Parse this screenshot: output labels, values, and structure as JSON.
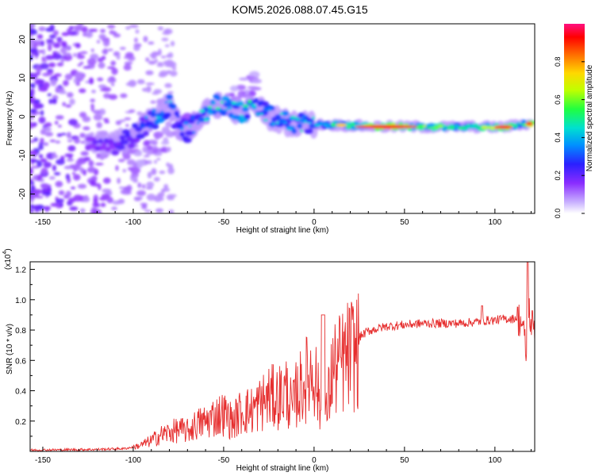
{
  "title": "KOM5.2026.088.07.45.G15",
  "chart_data": [
    {
      "type": "heatmap",
      "xlabel": "Height of straight line (km)",
      "ylabel": "Frequency (Hz)",
      "xlim": [
        -157,
        122
      ],
      "ylim": [
        -25,
        24
      ],
      "xticks": [
        -150,
        -100,
        -50,
        0,
        50,
        100
      ],
      "xtick_labels": [
        "-150",
        "-100",
        "-50",
        "0",
        "50",
        "100"
      ],
      "yticks": [
        20,
        10,
        0,
        -10,
        -20
      ],
      "ytick_labels": [
        "20",
        "10",
        "0",
        "-10",
        "-20"
      ],
      "colorbar": {
        "label": "Normalized spectral amplitude",
        "range": [
          0,
          1
        ],
        "ticks": [
          0.0,
          0.2,
          0.4,
          0.6,
          0.8
        ],
        "tick_labels": [
          "0.0",
          "0.2",
          "0.4",
          "0.6",
          "0.8"
        ]
      },
      "colors": [
        "#ffffff",
        "#b39aff",
        "#7a1cff",
        "#2a2aff",
        "#00b4ff",
        "#00e0b0",
        "#40ff40",
        "#d8ff00",
        "#ffd000",
        "#ff6a00",
        "#ff0000",
        "#ff0080"
      ],
      "ridge": {
        "description_points": [
          {
            "x": -120,
            "y": -6.5,
            "amp": 0.25
          },
          {
            "x": -110,
            "y": -7,
            "amp": 0.3
          },
          {
            "x": -100,
            "y": -5,
            "amp": 0.32
          },
          {
            "x": -90,
            "y": -1,
            "amp": 0.38
          },
          {
            "x": -85,
            "y": 1,
            "amp": 0.45
          },
          {
            "x": -80,
            "y": 3,
            "amp": 0.4
          },
          {
            "x": -75,
            "y": -2,
            "amp": 0.35
          },
          {
            "x": -70,
            "y": -4,
            "amp": 0.38
          },
          {
            "x": -60,
            "y": 1,
            "amp": 0.45
          },
          {
            "x": -55,
            "y": 3,
            "amp": 0.5
          },
          {
            "x": -45,
            "y": 2,
            "amp": 0.45
          },
          {
            "x": -40,
            "y": 1,
            "amp": 0.5
          },
          {
            "x": -32,
            "y": 3,
            "amp": 0.5
          },
          {
            "x": -25,
            "y": 0,
            "amp": 0.42
          },
          {
            "x": -15,
            "y": -1.5,
            "amp": 0.45
          },
          {
            "x": 0,
            "y": -2,
            "amp": 0.42
          },
          {
            "x": 15,
            "y": -2.2,
            "amp": 0.55
          },
          {
            "x": 25,
            "y": -2.4,
            "amp": 0.6
          },
          {
            "x": 40,
            "y": -2.6,
            "amp": 0.9
          },
          {
            "x": 55,
            "y": -2.6,
            "amp": 0.6
          },
          {
            "x": 70,
            "y": -2.7,
            "amp": 0.6
          },
          {
            "x": 85,
            "y": -2.6,
            "amp": 0.55
          },
          {
            "x": 105,
            "y": -2.7,
            "amp": 0.8
          },
          {
            "x": 115,
            "y": -2,
            "amp": 0.5
          },
          {
            "x": 119,
            "y": -1.8,
            "amp": 0.9
          }
        ]
      }
    },
    {
      "type": "line",
      "xlabel": "Height of straight line (km)",
      "ylabel": "SNR (10 * v/v)",
      "scale_label_base": "(x10",
      "scale_label_exp": "4",
      "scale_label_close": ")",
      "xlim": [
        -157,
        122
      ],
      "ylim": [
        0,
        1.25
      ],
      "xticks": [
        -150,
        -100,
        -50,
        0,
        50,
        100
      ],
      "xtick_labels": [
        "-150",
        "-100",
        "-50",
        "0",
        "50",
        "100"
      ],
      "yticks": [
        0.2,
        0.4,
        0.6,
        0.8,
        1.0,
        1.2
      ],
      "ytick_labels": [
        "0.2",
        "0.4",
        "0.6",
        "0.8",
        "1.0",
        "1.2"
      ],
      "color": "#e62e2e",
      "series": [
        {
          "name": "SNR",
          "x": [
            -157,
            -120,
            -105,
            -100,
            -95,
            -90,
            -85,
            -80,
            -75,
            -70,
            -65,
            -60,
            -55,
            -50,
            -45,
            -40,
            -35,
            -30,
            -25,
            -20,
            -15,
            -12,
            -10,
            -5,
            0,
            3,
            5,
            7,
            10,
            15,
            20,
            25,
            30,
            40,
            50,
            60,
            70,
            80,
            90,
            95,
            100,
            105,
            110,
            113,
            115,
            117,
            118,
            119,
            120,
            122
          ],
          "y": [
            0.01,
            0.015,
            0.02,
            0.03,
            0.05,
            0.08,
            0.12,
            0.14,
            0.16,
            0.15,
            0.2,
            0.22,
            0.26,
            0.28,
            0.22,
            0.3,
            0.3,
            0.35,
            0.4,
            0.4,
            0.45,
            0.3,
            0.42,
            0.52,
            0.62,
            0.35,
            0.12,
            0.3,
            0.6,
            0.65,
            0.72,
            0.76,
            0.8,
            0.83,
            0.84,
            0.85,
            0.85,
            0.85,
            0.86,
            0.87,
            0.87,
            0.88,
            0.88,
            0.9,
            0.87,
            0.7,
            0.6,
            0.95,
            0.86,
            0.85
          ]
        }
      ]
    }
  ]
}
